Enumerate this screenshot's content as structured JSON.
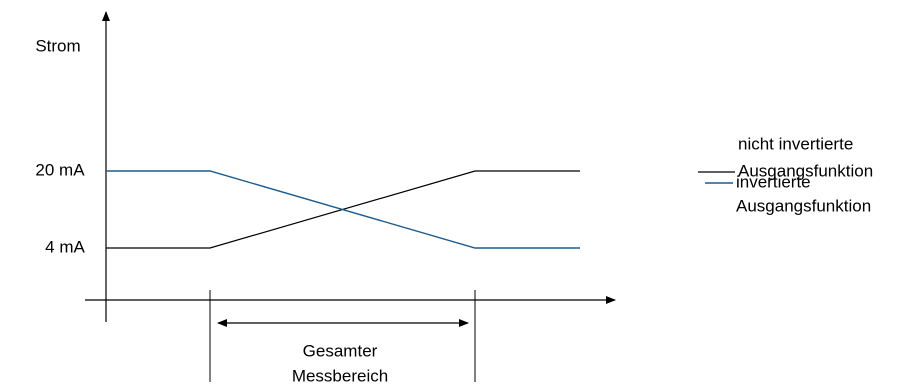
{
  "axes": {
    "y_label": "Strom",
    "y_levels": [
      "20 mA",
      "4 mA"
    ],
    "x_span_label": [
      "Gesamter",
      "Messbereich"
    ]
  },
  "legend": [
    {
      "lines": [
        "nicht invertierte",
        "Ausgangsfunktion"
      ]
    },
    {
      "lines": [
        "invertierte",
        "Ausgangsfunktion"
      ]
    }
  ]
}
